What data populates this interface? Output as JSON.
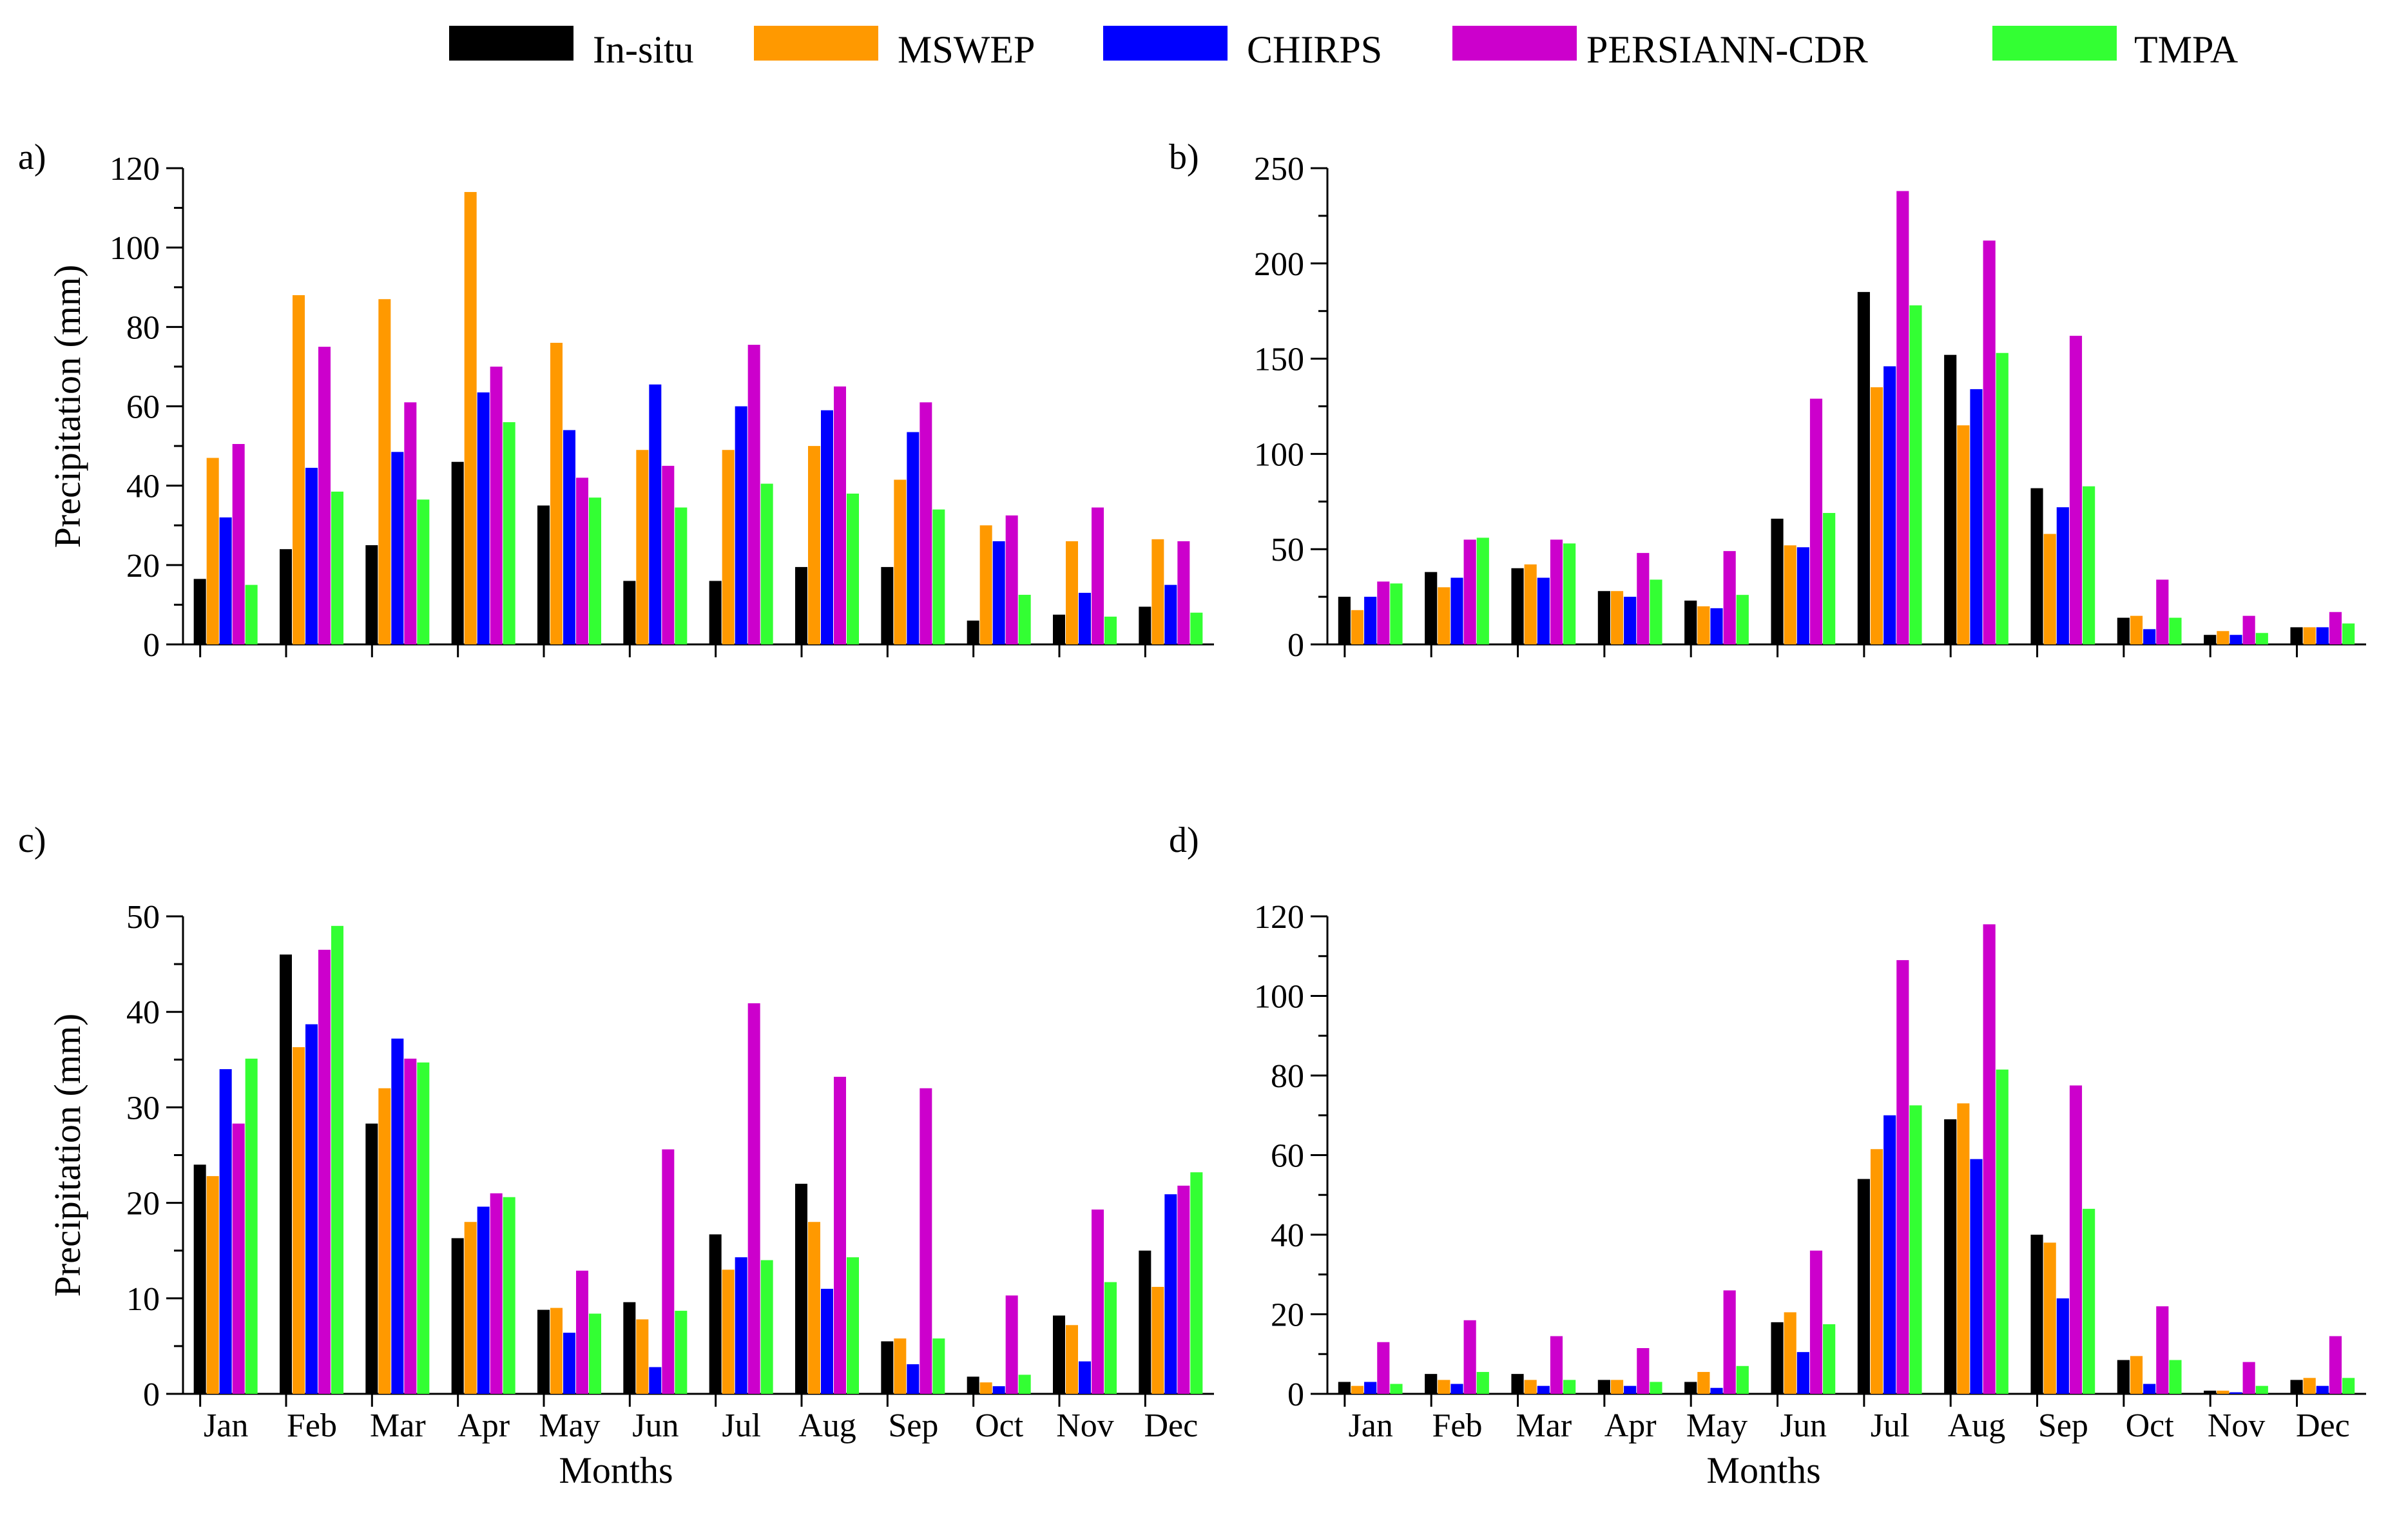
{
  "legend": [
    {
      "name": "In-situ",
      "color": "#000000",
      "icon": "legend-swatch"
    },
    {
      "name": "MSWEP",
      "color": "#ff9900",
      "icon": "legend-swatch"
    },
    {
      "name": "CHIRPS",
      "color": "#0000ff",
      "icon": "legend-swatch"
    },
    {
      "name": "PERSIANN-CDR",
      "color": "#cc00cc",
      "icon": "legend-swatch"
    },
    {
      "name": "TMPA",
      "color": "#33ff33",
      "icon": "legend-swatch"
    }
  ],
  "chart_data": [
    {
      "panel": "a)",
      "type": "bar",
      "title": "",
      "xlabel": "",
      "ylabel": "Precipitation (mm)",
      "ylim": [
        0,
        120
      ],
      "yticks": [
        "0",
        "20",
        "40",
        "60",
        "80",
        "100",
        "120"
      ],
      "categories": [
        "Jan",
        "Feb",
        "Mar",
        "Apr",
        "May",
        "Jun",
        "Jul",
        "Aug",
        "Sep",
        "Oct",
        "Nov",
        "Dec"
      ],
      "show_xticklabels": false,
      "series": [
        {
          "name": "In-situ",
          "values": [
            16.5,
            24,
            25,
            46,
            35,
            16,
            16,
            19.5,
            19.5,
            6,
            7.5,
            9.5
          ]
        },
        {
          "name": "MSWEP",
          "values": [
            47,
            88,
            87,
            114,
            76,
            49,
            49,
            50,
            41.5,
            30,
            26,
            26.5
          ]
        },
        {
          "name": "CHIRPS",
          "values": [
            32,
            44.5,
            48.5,
            63.5,
            54,
            65.5,
            60,
            59,
            53.5,
            26,
            13,
            15
          ]
        },
        {
          "name": "PERSIANN-CDR",
          "values": [
            50.5,
            75,
            61,
            70,
            42,
            45,
            75.5,
            65,
            61,
            32.5,
            34.5,
            26
          ]
        },
        {
          "name": "TMPA",
          "values": [
            15,
            38.5,
            36.5,
            56,
            37,
            34.5,
            40.5,
            38,
            34,
            12.5,
            7,
            8
          ]
        }
      ]
    },
    {
      "panel": "b)",
      "type": "bar",
      "title": "",
      "xlabel": "",
      "ylabel": "",
      "ylim": [
        0,
        250
      ],
      "yticks": [
        "0",
        "50",
        "100",
        "150",
        "200",
        "250"
      ],
      "categories": [
        "Jan",
        "Feb",
        "Mar",
        "Apr",
        "May",
        "Jun",
        "Jul",
        "Aug",
        "Sep",
        "Oct",
        "Nov",
        "Dec"
      ],
      "show_xticklabels": false,
      "series": [
        {
          "name": "In-situ",
          "values": [
            25,
            38,
            40,
            28,
            23,
            66,
            185,
            152,
            82,
            14,
            5,
            9
          ]
        },
        {
          "name": "MSWEP",
          "values": [
            18,
            30,
            42,
            28,
            20,
            52,
            135,
            115,
            58,
            15,
            7,
            9
          ]
        },
        {
          "name": "CHIRPS",
          "values": [
            25,
            35,
            35,
            25,
            19,
            51,
            146,
            134,
            72,
            8,
            5,
            9
          ]
        },
        {
          "name": "PERSIANN-CDR",
          "values": [
            33,
            55,
            55,
            48,
            49,
            129,
            238,
            212,
            162,
            34,
            15,
            17
          ]
        },
        {
          "name": "TMPA",
          "values": [
            32,
            56,
            53,
            34,
            26,
            69,
            178,
            153,
            83,
            14,
            6,
            11
          ]
        }
      ]
    },
    {
      "panel": "c)",
      "type": "bar",
      "title": "",
      "xlabel": "Months",
      "ylabel": "Precipitation (mm)",
      "ylim": [
        0,
        50
      ],
      "yticks": [
        "0",
        "10",
        "20",
        "30",
        "40",
        "50"
      ],
      "categories": [
        "Jan",
        "Feb",
        "Mar",
        "Apr",
        "May",
        "Jun",
        "Jul",
        "Aug",
        "Sep",
        "Oct",
        "Nov",
        "Dec"
      ],
      "show_xticklabels": true,
      "series": [
        {
          "name": "In-situ",
          "values": [
            24,
            46,
            28.3,
            16.3,
            8.8,
            9.6,
            16.7,
            22,
            5.5,
            1.8,
            8.2,
            15
          ]
        },
        {
          "name": "MSWEP",
          "values": [
            22.8,
            36.3,
            32,
            18,
            9,
            7.8,
            13,
            18,
            5.8,
            1.2,
            7.2,
            11.2
          ]
        },
        {
          "name": "CHIRPS",
          "values": [
            34,
            38.7,
            37.2,
            19.6,
            6.4,
            2.8,
            14.3,
            11,
            3.1,
            0.8,
            3.4,
            20.9
          ]
        },
        {
          "name": "PERSIANN-CDR",
          "values": [
            28.3,
            46.5,
            35.1,
            21,
            12.9,
            25.6,
            40.9,
            33.2,
            32,
            10.3,
            19.3,
            21.8
          ]
        },
        {
          "name": "TMPA",
          "values": [
            35.1,
            49,
            34.7,
            20.6,
            8.4,
            8.7,
            14,
            14.3,
            5.8,
            2,
            11.7,
            23.2
          ]
        }
      ]
    },
    {
      "panel": "d)",
      "type": "bar",
      "title": "",
      "xlabel": "Months",
      "ylabel": "",
      "ylim": [
        0,
        120
      ],
      "yticks": [
        "0",
        "20",
        "40",
        "60",
        "80",
        "100",
        "120"
      ],
      "categories": [
        "Jan",
        "Feb",
        "Mar",
        "Apr",
        "May",
        "Jun",
        "Jul",
        "Aug",
        "Sep",
        "Oct",
        "Nov",
        "Dec"
      ],
      "show_xticklabels": true,
      "series": [
        {
          "name": "In-situ",
          "values": [
            3,
            5,
            5,
            3.5,
            3,
            18,
            54,
            69,
            40,
            8.5,
            0.8,
            3.5
          ]
        },
        {
          "name": "MSWEP",
          "values": [
            2,
            3.5,
            3.5,
            3.5,
            5.5,
            20.5,
            61.5,
            73,
            38,
            9.5,
            0.8,
            4
          ]
        },
        {
          "name": "CHIRPS",
          "values": [
            3,
            2.5,
            2,
            2,
            1.5,
            10.5,
            70,
            59,
            24,
            2.5,
            0.4,
            2
          ]
        },
        {
          "name": "PERSIANN-CDR",
          "values": [
            13,
            18.5,
            14.5,
            11.5,
            26,
            36,
            109,
            118,
            77.5,
            22,
            8,
            14.5
          ]
        },
        {
          "name": "TMPA",
          "values": [
            2.5,
            5.5,
            3.5,
            3,
            7,
            17.5,
            72.5,
            81.5,
            46.5,
            8.5,
            2,
            4
          ]
        }
      ]
    }
  ]
}
